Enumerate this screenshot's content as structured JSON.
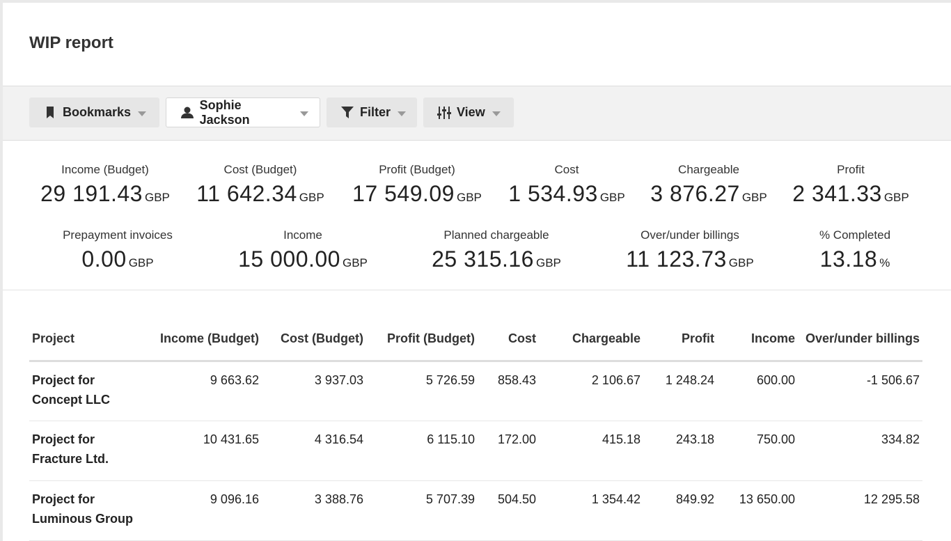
{
  "page": {
    "title": "WIP report"
  },
  "toolbar": {
    "bookmarks": "Bookmarks",
    "user": "Sophie Jackson",
    "filter": "Filter",
    "view": "View"
  },
  "stats": [
    {
      "label": "Income (Budget)",
      "value": "29 191.43",
      "unit": "GBP"
    },
    {
      "label": "Cost (Budget)",
      "value": "11 642.34",
      "unit": "GBP"
    },
    {
      "label": "Profit (Budget)",
      "value": "17 549.09",
      "unit": "GBP"
    },
    {
      "label": "Cost",
      "value": "1 534.93",
      "unit": "GBP"
    },
    {
      "label": "Chargeable",
      "value": "3 876.27",
      "unit": "GBP"
    },
    {
      "label": "Profit",
      "value": "2 341.33",
      "unit": "GBP"
    },
    {
      "label": "Prepayment invoices",
      "value": "0.00",
      "unit": "GBP"
    },
    {
      "label": "Income",
      "value": "15 000.00",
      "unit": "GBP"
    },
    {
      "label": "Planned chargeable",
      "value": "25 315.16",
      "unit": "GBP"
    },
    {
      "label": "Over/under billings",
      "value": "11 123.73",
      "unit": "GBP"
    },
    {
      "label": "% Completed",
      "value": "13.18",
      "unit": "%"
    }
  ],
  "table": {
    "headers": [
      "Project",
      "Income (Budget)",
      "Cost (Budget)",
      "Profit (Budget)",
      "Cost",
      "Chargeable",
      "Profit",
      "Income",
      "Over/under billings"
    ],
    "rows": [
      [
        "Project for Concept LLC",
        "9 663.62",
        "3 937.03",
        "5 726.59",
        "858.43",
        "2 106.67",
        "1 248.24",
        "600.00",
        "-1 506.67"
      ],
      [
        "Project for Fracture Ltd.",
        "10 431.65",
        "4 316.54",
        "6 115.10",
        "172.00",
        "415.18",
        "243.18",
        "750.00",
        "334.82"
      ],
      [
        "Project for Luminous Group",
        "9 096.16",
        "3 388.76",
        "5 707.39",
        "504.50",
        "1 354.42",
        "849.92",
        "13 650.00",
        "12 295.58"
      ]
    ]
  }
}
